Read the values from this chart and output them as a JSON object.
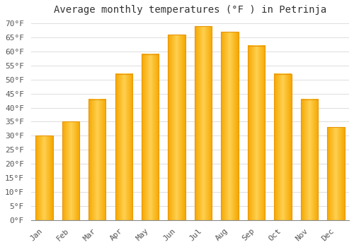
{
  "title": "Average monthly temperatures (°F ) in Petrinja",
  "months": [
    "Jan",
    "Feb",
    "Mar",
    "Apr",
    "May",
    "Jun",
    "Jul",
    "Aug",
    "Sep",
    "Oct",
    "Nov",
    "Dec"
  ],
  "values": [
    30,
    35,
    43,
    52,
    59,
    66,
    69,
    67,
    62,
    52,
    43,
    33
  ],
  "bar_color_light": "#FFD050",
  "bar_color_dark": "#F5A800",
  "bar_edge_color": "#E8960A",
  "background_color": "#FFFFFF",
  "grid_color": "#DDDDDD",
  "ytick_min": 0,
  "ytick_max": 70,
  "ytick_step": 5,
  "title_fontsize": 10,
  "tick_fontsize": 8,
  "font_family": "monospace"
}
